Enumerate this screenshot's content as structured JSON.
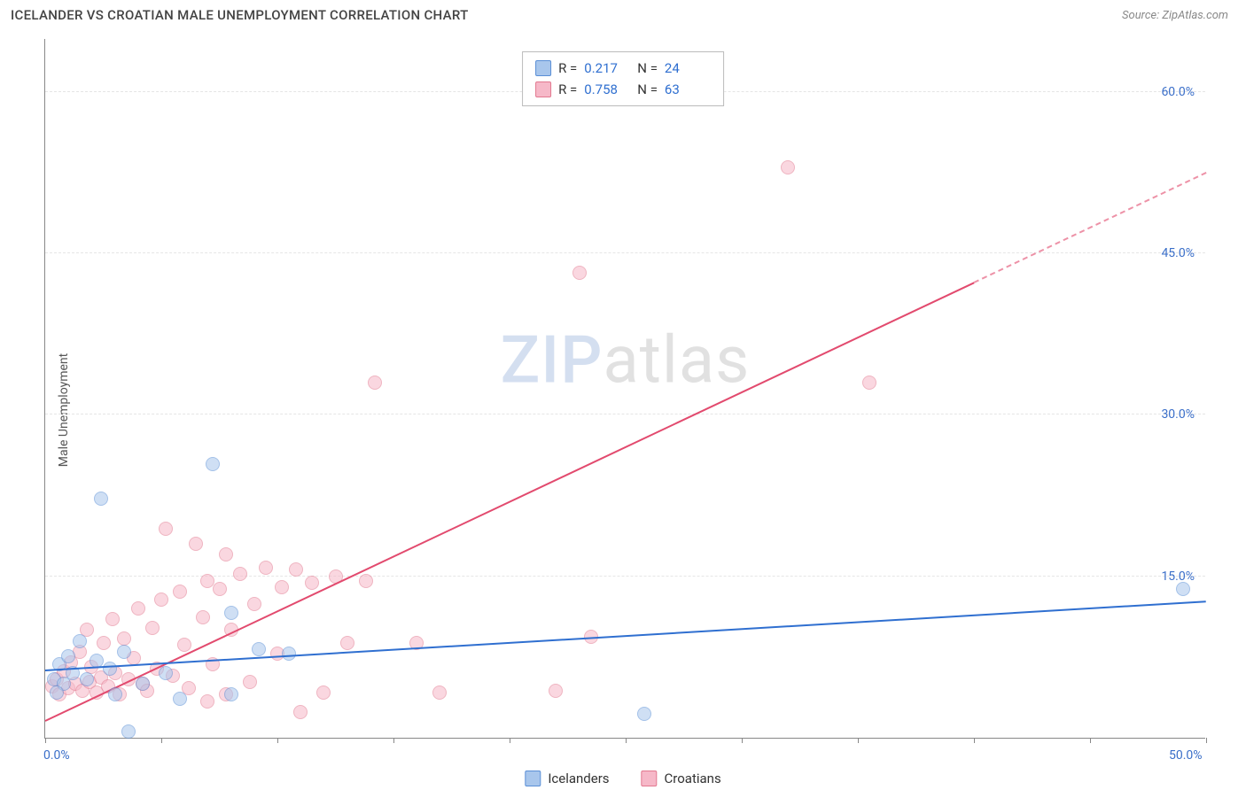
{
  "title": "ICELANDER VS CROATIAN MALE UNEMPLOYMENT CORRELATION CHART",
  "source": "Source: ZipAtlas.com",
  "ylabel": "Male Unemployment",
  "watermark": {
    "part1": "ZIP",
    "part2": "atlas"
  },
  "chart": {
    "type": "scatter",
    "xlim": [
      0,
      50
    ],
    "ylim": [
      0,
      65
    ],
    "x_tick_labels": {
      "0": "0.0%",
      "50": "50.0%"
    },
    "x_tick_positions": [
      0,
      5,
      10,
      15,
      20,
      25,
      30,
      35,
      40,
      45,
      50
    ],
    "y_grid": [
      15,
      30,
      45,
      60
    ],
    "y_tick_labels": {
      "15": "15.0%",
      "30": "30.0%",
      "45": "45.0%",
      "60": "60.0%"
    },
    "grid_color": "#e7e7e7",
    "axis_color": "#888888",
    "background_color": "#ffffff",
    "tick_label_color": "#3b6fc9",
    "point_radius": 8,
    "point_opacity": 0.55,
    "series": [
      {
        "name": "Icelanders",
        "fill": "#a8c6ec",
        "stroke": "#5a8fd6",
        "r_value": "0.217",
        "n_value": "24",
        "trend": {
          "x1": 0,
          "y1": 6.2,
          "x2": 50,
          "y2": 12.6,
          "color": "#2f6fd0",
          "width": 2.2
        },
        "points": [
          [
            0.4,
            5.4
          ],
          [
            0.6,
            6.8
          ],
          [
            0.8,
            5.0
          ],
          [
            1.0,
            7.6
          ],
          [
            1.2,
            6.0
          ],
          [
            1.5,
            9.0
          ],
          [
            1.8,
            5.4
          ],
          [
            2.2,
            7.2
          ],
          [
            2.4,
            22.2
          ],
          [
            2.8,
            6.4
          ],
          [
            3.0,
            4.0
          ],
          [
            3.4,
            8.0
          ],
          [
            3.6,
            0.6
          ],
          [
            4.2,
            5.0
          ],
          [
            5.2,
            6.0
          ],
          [
            5.8,
            3.6
          ],
          [
            7.2,
            25.4
          ],
          [
            8.0,
            11.6
          ],
          [
            8.0,
            4.0
          ],
          [
            9.2,
            8.2
          ],
          [
            10.5,
            7.8
          ],
          [
            25.8,
            2.2
          ],
          [
            49.0,
            13.8
          ],
          [
            0.5,
            4.2
          ]
        ]
      },
      {
        "name": "Croatians",
        "fill": "#f6b8c8",
        "stroke": "#e2788f",
        "r_value": "0.758",
        "n_value": "63",
        "trend": {
          "x1": 0,
          "y1": 1.5,
          "x2": 40,
          "y2": 42.2,
          "color": "#e24a6e",
          "width": 2.2,
          "dash_extend": {
            "x2": 50,
            "y2": 52.4
          }
        },
        "points": [
          [
            0.3,
            4.8
          ],
          [
            0.5,
            5.4
          ],
          [
            0.6,
            4.0
          ],
          [
            0.8,
            6.2
          ],
          [
            1.0,
            4.6
          ],
          [
            1.1,
            7.0
          ],
          [
            1.3,
            5.0
          ],
          [
            1.5,
            8.0
          ],
          [
            1.6,
            4.4
          ],
          [
            1.8,
            10.0
          ],
          [
            1.9,
            5.2
          ],
          [
            2.0,
            6.6
          ],
          [
            2.2,
            4.2
          ],
          [
            2.4,
            5.6
          ],
          [
            2.5,
            8.8
          ],
          [
            2.7,
            4.8
          ],
          [
            2.9,
            11.0
          ],
          [
            3.0,
            6.0
          ],
          [
            3.2,
            4.0
          ],
          [
            3.4,
            9.2
          ],
          [
            3.6,
            5.4
          ],
          [
            3.8,
            7.4
          ],
          [
            4.0,
            12.0
          ],
          [
            4.2,
            5.0
          ],
          [
            4.4,
            4.4
          ],
          [
            4.6,
            10.2
          ],
          [
            4.8,
            6.4
          ],
          [
            5.0,
            12.8
          ],
          [
            5.2,
            19.4
          ],
          [
            5.5,
            5.8
          ],
          [
            5.8,
            13.6
          ],
          [
            6.0,
            8.6
          ],
          [
            6.2,
            4.6
          ],
          [
            6.5,
            18.0
          ],
          [
            6.8,
            11.2
          ],
          [
            7.0,
            14.6
          ],
          [
            7.2,
            6.8
          ],
          [
            7.5,
            13.8
          ],
          [
            7.8,
            4.0
          ],
          [
            7.8,
            17.0
          ],
          [
            8.0,
            10.0
          ],
          [
            8.4,
            15.2
          ],
          [
            8.8,
            5.2
          ],
          [
            9.0,
            12.4
          ],
          [
            9.5,
            15.8
          ],
          [
            10.0,
            7.8
          ],
          [
            10.2,
            14.0
          ],
          [
            10.8,
            15.6
          ],
          [
            11.0,
            2.4
          ],
          [
            11.5,
            14.4
          ],
          [
            12.0,
            4.2
          ],
          [
            12.5,
            15.0
          ],
          [
            13.0,
            8.8
          ],
          [
            13.8,
            14.6
          ],
          [
            14.2,
            33.0
          ],
          [
            16.0,
            8.8
          ],
          [
            17.0,
            4.2
          ],
          [
            22.0,
            4.4
          ],
          [
            23.0,
            43.2
          ],
          [
            23.5,
            9.4
          ],
          [
            32.0,
            53.0
          ],
          [
            35.5,
            33.0
          ],
          [
            7.0,
            3.4
          ]
        ]
      }
    ]
  },
  "legend_top": {
    "r_label": "R =",
    "n_label": "N ="
  },
  "legend_bottom": {
    "items": [
      "Icelanders",
      "Croatians"
    ]
  }
}
